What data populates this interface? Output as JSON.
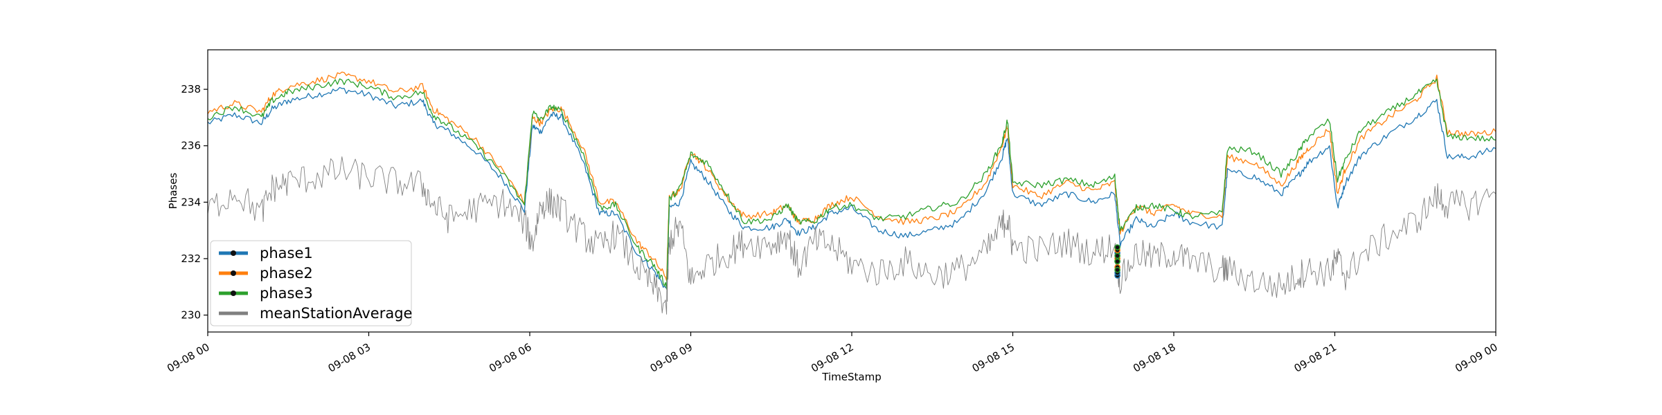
{
  "chart_data": {
    "type": "line",
    "xlabel": "TimeStamp",
    "ylabel": "Phases",
    "x_range_hours": [
      0,
      24
    ],
    "ylim": [
      229.4,
      239.4
    ],
    "grid": false,
    "legend_position": "lower-left",
    "x_ticks": [
      {
        "hour": 0,
        "label": "09-08 00"
      },
      {
        "hour": 3,
        "label": "09-08 03"
      },
      {
        "hour": 6,
        "label": "09-08 06"
      },
      {
        "hour": 9,
        "label": "09-08 09"
      },
      {
        "hour": 12,
        "label": "09-08 12"
      },
      {
        "hour": 15,
        "label": "09-08 15"
      },
      {
        "hour": 18,
        "label": "09-08 18"
      },
      {
        "hour": 21,
        "label": "09-08 21"
      },
      {
        "hour": 24,
        "label": "09-09 00"
      }
    ],
    "y_ticks": [
      {
        "value": 230,
        "label": "230"
      },
      {
        "value": 232,
        "label": "232"
      },
      {
        "value": 234,
        "label": "234"
      },
      {
        "value": 236,
        "label": "236"
      },
      {
        "value": 238,
        "label": "238"
      }
    ],
    "hours": [
      0,
      0.5,
      1,
      1.2,
      1.5,
      2,
      2.5,
      3,
      3.5,
      4,
      4.2,
      4.5,
      5,
      5.5,
      5.9,
      6.05,
      6.2,
      6.4,
      6.6,
      7,
      7.3,
      7.6,
      8,
      8.3,
      8.55,
      8.6,
      8.8,
      9,
      9.3,
      9.7,
      10,
      10.5,
      10.8,
      11,
      11.3,
      11.6,
      12,
      12.5,
      13,
      13.5,
      14,
      14.5,
      14.8,
      14.9,
      15,
      15.5,
      16,
      16.5,
      16.9,
      17,
      17.3,
      17.6,
      18,
      18.3,
      18.9,
      19,
      19.5,
      20,
      20.3,
      20.5,
      20.9,
      21.05,
      21.2,
      21.5,
      22,
      22.5,
      22.9,
      23.1,
      23.5,
      24
    ],
    "series": [
      {
        "name": "phase1",
        "color": "#1f77b4",
        "values": [
          236.8,
          237.1,
          236.8,
          237.3,
          237.6,
          237.8,
          238.0,
          237.8,
          237.4,
          237.6,
          236.8,
          236.5,
          235.8,
          234.8,
          233.7,
          236.7,
          236.5,
          237.1,
          237.0,
          235.4,
          233.6,
          233.6,
          232.2,
          231.6,
          230.9,
          233.8,
          234.0,
          235.4,
          234.8,
          233.7,
          233.1,
          233.1,
          233.4,
          232.9,
          233.1,
          233.6,
          233.8,
          233.0,
          232.8,
          233.0,
          233.3,
          234.4,
          235.6,
          236.3,
          234.3,
          233.9,
          234.3,
          234.0,
          234.3,
          232.5,
          233.4,
          233.1,
          233.6,
          233.3,
          233.1,
          235.1,
          234.9,
          234.3,
          234.9,
          235.4,
          236.0,
          233.8,
          234.7,
          235.7,
          236.4,
          237.0,
          237.6,
          235.6,
          235.6,
          235.9
        ]
      },
      {
        "name": "phase2",
        "color": "#ff7f0e",
        "values": [
          237.2,
          237.5,
          237.2,
          237.8,
          238.1,
          238.3,
          238.5,
          238.3,
          237.9,
          238.1,
          237.3,
          236.9,
          236.2,
          235.1,
          234.0,
          237.0,
          236.8,
          237.3,
          237.3,
          235.9,
          234.0,
          234.0,
          232.6,
          232.0,
          231.3,
          234.2,
          234.4,
          235.8,
          235.2,
          234.1,
          233.5,
          233.6,
          233.9,
          233.3,
          233.4,
          233.9,
          234.2,
          233.5,
          233.3,
          233.4,
          233.7,
          234.7,
          236.0,
          236.7,
          234.6,
          234.2,
          234.7,
          234.4,
          234.7,
          232.9,
          233.9,
          233.6,
          233.9,
          233.6,
          233.5,
          235.6,
          235.4,
          234.6,
          235.4,
          235.9,
          236.6,
          234.3,
          235.2,
          236.3,
          237.0,
          237.6,
          238.4,
          236.5,
          236.4,
          236.5
        ]
      },
      {
        "name": "phase3",
        "color": "#2ca02c",
        "values": [
          237.0,
          237.4,
          237.0,
          237.6,
          237.9,
          238.1,
          238.3,
          238.1,
          237.7,
          237.9,
          237.1,
          236.7,
          236.0,
          235.0,
          233.9,
          237.2,
          236.9,
          237.4,
          237.2,
          235.7,
          233.8,
          233.9,
          232.4,
          231.8,
          231.0,
          234.1,
          234.5,
          235.7,
          235.4,
          234.2,
          233.3,
          233.4,
          233.9,
          233.3,
          233.3,
          233.8,
          233.9,
          233.4,
          233.5,
          233.8,
          234.0,
          235.0,
          236.1,
          236.9,
          234.7,
          234.6,
          234.8,
          234.6,
          234.9,
          233.0,
          233.8,
          233.9,
          233.7,
          233.5,
          233.6,
          235.9,
          235.8,
          235.0,
          235.7,
          236.3,
          236.9,
          234.8,
          235.5,
          236.6,
          237.2,
          237.8,
          238.3,
          236.3,
          236.3,
          236.2
        ]
      },
      {
        "name": "meanStationAverage",
        "color": "#808080",
        "values": [
          233.7,
          234.4,
          233.6,
          234.5,
          234.7,
          234.9,
          235.1,
          234.9,
          234.7,
          234.6,
          233.9,
          233.4,
          233.8,
          234.0,
          233.3,
          232.5,
          233.9,
          234.0,
          233.7,
          232.8,
          232.4,
          232.9,
          231.7,
          231.0,
          230.3,
          232.6,
          233.2,
          231.2,
          231.8,
          232.2,
          232.6,
          232.5,
          232.9,
          231.7,
          232.6,
          232.5,
          231.8,
          231.5,
          231.9,
          231.4,
          231.6,
          232.2,
          233.2,
          233.4,
          232.4,
          232.3,
          232.6,
          232.2,
          232.5,
          231.2,
          232.2,
          232.0,
          232.2,
          231.9,
          231.6,
          231.6,
          231.2,
          231.0,
          231.4,
          231.6,
          231.5,
          232.0,
          231.4,
          232.1,
          232.8,
          233.3,
          234.2,
          233.9,
          233.9,
          234.3
        ]
      }
    ],
    "markers": {
      "hour": 16.95,
      "points": [
        {
          "series": "phase1",
          "values": [
            231.4,
            231.5,
            231.9,
            232.2
          ]
        },
        {
          "series": "phase2",
          "values": [
            231.7,
            232.0,
            232.3
          ]
        },
        {
          "series": "phase3",
          "values": [
            231.6,
            231.9,
            232.1,
            232.4
          ]
        }
      ]
    }
  }
}
